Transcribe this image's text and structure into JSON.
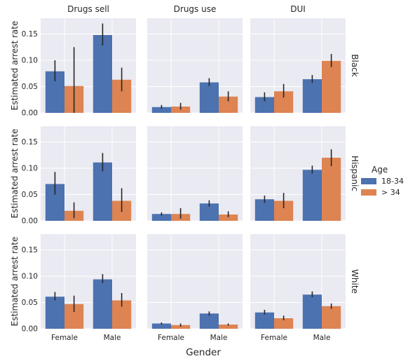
{
  "chart_data": {
    "type": "bar",
    "xlabel": "Gender",
    "ylabel": "Estimated arrest rate",
    "ylim": [
      0,
      0.18
    ],
    "yticks": [
      0.0,
      0.05,
      0.1,
      0.15
    ],
    "ytick_labels": [
      "0.00",
      "0.05",
      "0.10",
      "0.15"
    ],
    "categories": [
      "Female",
      "Male"
    ],
    "columns": [
      "Drugs sell",
      "Drugs use",
      "DUI"
    ],
    "rows": [
      "Black",
      "Hispanic",
      "White"
    ],
    "grid": true,
    "legend": {
      "title": "Age",
      "placement": "right",
      "entries": [
        {
          "name": "18-34",
          "color": "#4c72b0"
        },
        {
          "name": "> 34",
          "color": "#dd8452"
        }
      ]
    },
    "series_colors": [
      "#4c72b0",
      "#dd8452"
    ],
    "panels": [
      {
        "row": "Black",
        "col": "Drugs sell",
        "series": [
          {
            "name": "18-34",
            "values": [
              0.079,
              0.148
            ],
            "err_low": [
              0.06,
              0.128
            ],
            "err_high": [
              0.1,
              0.17
            ]
          },
          {
            "name": "> 34",
            "values": [
              0.051,
              0.063
            ],
            "err_low": [
              0.0,
              0.041
            ],
            "err_high": [
              0.125,
              0.086
            ]
          }
        ]
      },
      {
        "row": "Black",
        "col": "Drugs use",
        "series": [
          {
            "name": "18-34",
            "values": [
              0.011,
              0.058
            ],
            "err_low": [
              0.008,
              0.051
            ],
            "err_high": [
              0.015,
              0.066
            ]
          },
          {
            "name": "> 34",
            "values": [
              0.012,
              0.031
            ],
            "err_low": [
              0.006,
              0.022
            ],
            "err_high": [
              0.019,
              0.041
            ]
          }
        ]
      },
      {
        "row": "Black",
        "col": "DUI",
        "series": [
          {
            "name": "18-34",
            "values": [
              0.03,
              0.064
            ],
            "err_low": [
              0.022,
              0.057
            ],
            "err_high": [
              0.039,
              0.072
            ]
          },
          {
            "name": "> 34",
            "values": [
              0.041,
              0.099
            ],
            "err_low": [
              0.029,
              0.087
            ],
            "err_high": [
              0.055,
              0.112
            ]
          }
        ]
      },
      {
        "row": "Hispanic",
        "col": "Drugs sell",
        "series": [
          {
            "name": "18-34",
            "values": [
              0.07,
              0.111
            ],
            "err_low": [
              0.05,
              0.094
            ],
            "err_high": [
              0.093,
              0.129
            ]
          },
          {
            "name": "> 34",
            "values": [
              0.019,
              0.038
            ],
            "err_low": [
              0.005,
              0.017
            ],
            "err_high": [
              0.035,
              0.062
            ]
          }
        ]
      },
      {
        "row": "Hispanic",
        "col": "Drugs use",
        "series": [
          {
            "name": "18-34",
            "values": [
              0.013,
              0.033
            ],
            "err_low": [
              0.01,
              0.027
            ],
            "err_high": [
              0.016,
              0.039
            ]
          },
          {
            "name": "> 34",
            "values": [
              0.013,
              0.012
            ],
            "err_low": [
              0.004,
              0.007
            ],
            "err_high": [
              0.024,
              0.018
            ]
          }
        ]
      },
      {
        "row": "Hispanic",
        "col": "DUI",
        "series": [
          {
            "name": "18-34",
            "values": [
              0.041,
              0.097
            ],
            "err_low": [
              0.034,
              0.09
            ],
            "err_high": [
              0.048,
              0.105
            ]
          },
          {
            "name": "> 34",
            "values": [
              0.038,
              0.12
            ],
            "err_low": [
              0.024,
              0.104
            ],
            "err_high": [
              0.053,
              0.136
            ]
          }
        ]
      },
      {
        "row": "White",
        "col": "Drugs sell",
        "series": [
          {
            "name": "18-34",
            "values": [
              0.061,
              0.094
            ],
            "err_low": [
              0.054,
              0.087
            ],
            "err_high": [
              0.07,
              0.104
            ]
          },
          {
            "name": "> 34",
            "values": [
              0.047,
              0.054
            ],
            "err_low": [
              0.032,
              0.042
            ],
            "err_high": [
              0.063,
              0.068
            ]
          }
        ]
      },
      {
        "row": "White",
        "col": "Drugs use",
        "series": [
          {
            "name": "18-34",
            "values": [
              0.01,
              0.029
            ],
            "err_low": [
              0.008,
              0.025
            ],
            "err_high": [
              0.012,
              0.033
            ]
          },
          {
            "name": "> 34",
            "values": [
              0.007,
              0.008
            ],
            "err_low": [
              0.004,
              0.006
            ],
            "err_high": [
              0.01,
              0.01
            ]
          }
        ]
      },
      {
        "row": "White",
        "col": "DUI",
        "series": [
          {
            "name": "18-34",
            "values": [
              0.031,
              0.065
            ],
            "err_low": [
              0.027,
              0.06
            ],
            "err_high": [
              0.036,
              0.071
            ]
          },
          {
            "name": "> 34",
            "values": [
              0.02,
              0.043
            ],
            "err_low": [
              0.016,
              0.038
            ],
            "err_high": [
              0.025,
              0.048
            ]
          }
        ]
      }
    ]
  }
}
